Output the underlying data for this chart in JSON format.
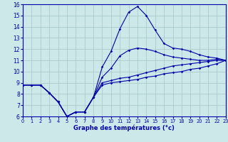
{
  "xlabel": "Graphe des températures (°c)",
  "xlim": [
    0,
    23
  ],
  "ylim": [
    6,
    16
  ],
  "xticks": [
    0,
    1,
    2,
    3,
    4,
    5,
    6,
    7,
    8,
    9,
    10,
    11,
    12,
    13,
    14,
    15,
    16,
    17,
    18,
    19,
    20,
    21,
    22,
    23
  ],
  "yticks": [
    6,
    7,
    8,
    9,
    10,
    11,
    12,
    13,
    14,
    15,
    16
  ],
  "bg_color": "#cce8e8",
  "grid_color": "#aacccc",
  "line_color": "#0000aa",
  "hours": [
    0,
    1,
    2,
    3,
    4,
    5,
    6,
    7,
    8,
    9,
    10,
    11,
    12,
    13,
    14,
    15,
    16,
    17,
    18,
    19,
    20,
    21,
    22,
    23
  ],
  "line_max": [
    8.8,
    8.8,
    8.8,
    8.1,
    7.3,
    6.0,
    6.4,
    6.4,
    7.7,
    10.4,
    11.8,
    13.8,
    15.3,
    15.8,
    15.0,
    13.7,
    12.5,
    12.1,
    12.0,
    11.8,
    11.5,
    11.3,
    11.2,
    11.0
  ],
  "line_min": [
    8.8,
    8.8,
    8.8,
    8.1,
    7.3,
    6.0,
    6.4,
    6.4,
    7.7,
    8.8,
    9.0,
    9.1,
    9.2,
    9.3,
    9.5,
    9.6,
    9.8,
    9.9,
    10.0,
    10.2,
    10.3,
    10.5,
    10.7,
    11.0
  ],
  "line_mean1": [
    8.8,
    8.8,
    8.8,
    8.1,
    7.3,
    6.0,
    6.4,
    6.4,
    7.7,
    9.0,
    9.2,
    9.4,
    9.5,
    9.7,
    9.9,
    10.1,
    10.3,
    10.5,
    10.6,
    10.7,
    10.8,
    10.9,
    11.0,
    11.0
  ],
  "line_mean2": [
    8.8,
    8.8,
    8.8,
    8.1,
    7.3,
    6.0,
    6.4,
    6.4,
    7.7,
    9.5,
    10.3,
    11.4,
    11.9,
    12.1,
    12.0,
    11.8,
    11.5,
    11.3,
    11.2,
    11.1,
    11.0,
    11.0,
    11.1,
    11.0
  ]
}
